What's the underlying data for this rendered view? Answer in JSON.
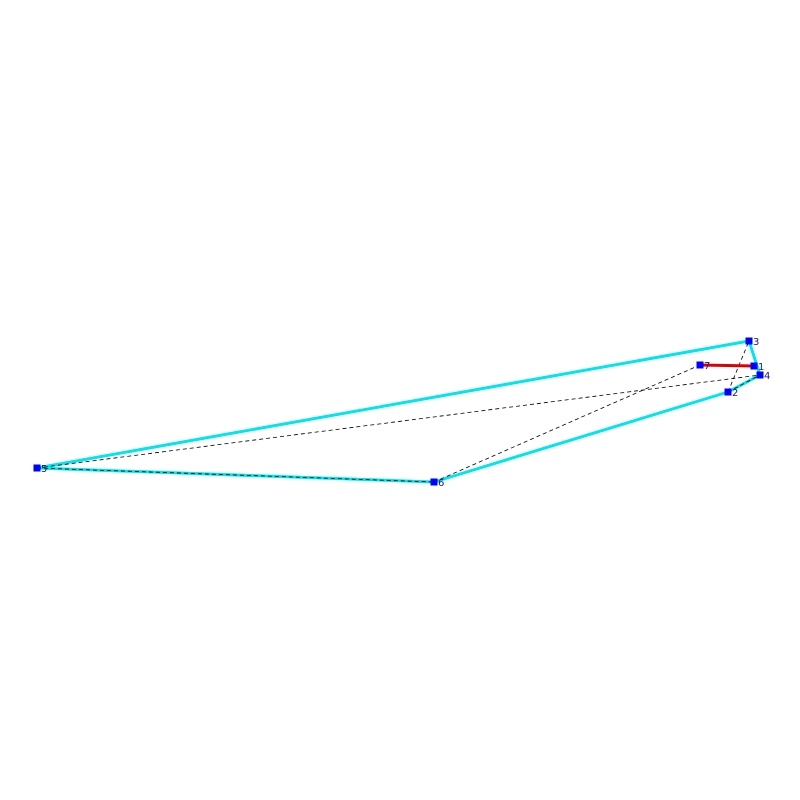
{
  "colors": {
    "background": "#ffffff",
    "hull_edge": "#00e5ee",
    "path_edge": "#dd0000",
    "dashed_edge": "#000000",
    "node_fill": "#0000ff"
  },
  "nodes": [
    {
      "id": "1",
      "label": "1"
    },
    {
      "id": "2",
      "label": "2"
    },
    {
      "id": "3",
      "label": "3"
    },
    {
      "id": "4",
      "label": "4"
    },
    {
      "id": "5",
      "label": "5"
    },
    {
      "id": "6",
      "label": "6"
    },
    {
      "id": "7",
      "label": "7"
    }
  ],
  "hull_edges": [
    [
      "3",
      "5"
    ],
    [
      "5",
      "6"
    ],
    [
      "6",
      "2"
    ],
    [
      "2",
      "4"
    ],
    [
      "4",
      "3"
    ]
  ],
  "path_edges": [
    [
      "7",
      "1"
    ]
  ],
  "dashed_edges": [
    [
      "5",
      "6"
    ],
    [
      "5",
      "4"
    ],
    [
      "6",
      "7"
    ],
    [
      "2",
      "3"
    ],
    [
      "2",
      "4"
    ]
  ]
}
